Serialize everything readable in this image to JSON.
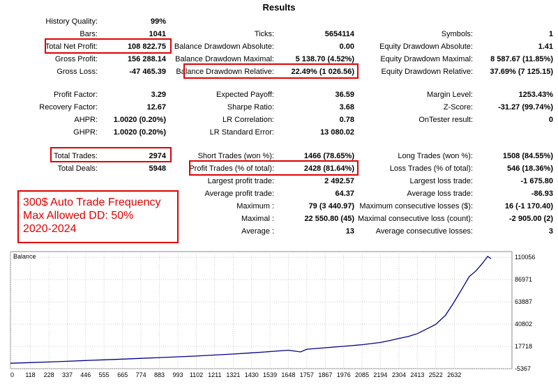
{
  "title": "Results",
  "stats": {
    "history_quality": {
      "label": "History Quality:",
      "value": "99%"
    },
    "bars": {
      "label": "Bars:",
      "value": "1041"
    },
    "total_net_profit": {
      "label": "Total Net Profit:",
      "value": "108 822.75"
    },
    "gross_profit": {
      "label": "Gross Profit:",
      "value": "156 288.14"
    },
    "gross_loss": {
      "label": "Gross Loss:",
      "value": "-47 465.39"
    },
    "ticks": {
      "label": "Ticks:",
      "value": "5654114"
    },
    "balance_dd_absolute": {
      "label": "Balance Drawdown Absolute:",
      "value": "0.00"
    },
    "balance_dd_maximal": {
      "label": "Balance Drawdown Maximal:",
      "value": "5 138.70 (4.52%)"
    },
    "balance_dd_relative": {
      "label": "Balance Drawdown Relative:",
      "value": "22.49% (1 026.56)"
    },
    "symbols": {
      "label": "Symbols:",
      "value": "1"
    },
    "equity_dd_absolute": {
      "label": "Equity Drawdown Absolute:",
      "value": "1.41"
    },
    "equity_dd_maximal": {
      "label": "Equity Drawdown Maximal:",
      "value": "8 587.67 (11.85%)"
    },
    "equity_dd_relative": {
      "label": "Equity Drawdown Relative:",
      "value": "37.69% (7 125.15)"
    },
    "profit_factor": {
      "label": "Profit Factor:",
      "value": "3.29"
    },
    "recovery_factor": {
      "label": "Recovery Factor:",
      "value": "12.67"
    },
    "ahpr": {
      "label": "AHPR:",
      "value": "1.0020 (0.20%)"
    },
    "ghpr": {
      "label": "GHPR:",
      "value": "1.0020 (0.20%)"
    },
    "expected_payoff": {
      "label": "Expected Payoff:",
      "value": "36.59"
    },
    "sharpe_ratio": {
      "label": "Sharpe Ratio:",
      "value": "3.68"
    },
    "lr_correlation": {
      "label": "LR Correlation:",
      "value": "0.78"
    },
    "lr_standard_error": {
      "label": "LR Standard Error:",
      "value": "13 080.02"
    },
    "margin_level": {
      "label": "Margin Level:",
      "value": "1253.43%"
    },
    "z_score": {
      "label": "Z-Score:",
      "value": "-31.27 (99.74%)"
    },
    "on_tester_result": {
      "label": "OnTester result:",
      "value": "0"
    },
    "total_trades": {
      "label": "Total Trades:",
      "value": "2974"
    },
    "total_deals": {
      "label": "Total Deals:",
      "value": "5948"
    },
    "short_trades": {
      "label": "Short Trades (won %):",
      "value": "1466 (78.65%)"
    },
    "profit_trades": {
      "label": "Profit Trades (% of total):",
      "value": "2428 (81.64%)"
    },
    "largest_profit_trade": {
      "label": "Largest profit trade:",
      "value": "2 492.57"
    },
    "average_profit_trade": {
      "label": "Average profit trade:",
      "value": "64.37"
    },
    "maximum": {
      "label": "Maximum :",
      "value": "79 (3 440.97)"
    },
    "maximal": {
      "label": "Maximal :",
      "value": "22 550.80 (45)"
    },
    "average": {
      "label": "Average :",
      "value": "13"
    },
    "long_trades": {
      "label": "Long Trades (won %):",
      "value": "1508 (84.55%)"
    },
    "loss_trades": {
      "label": "Loss Trades (% of total):",
      "value": "546 (18.36%)"
    },
    "largest_loss_trade": {
      "label": "Largest loss trade:",
      "value": "-1 675.80"
    },
    "average_loss_trade": {
      "label": "Average loss trade:",
      "value": "-86.93"
    },
    "max_consecutive_losses": {
      "label": "Maximum consecutive losses ($):",
      "value": "16 (-1 170.40)"
    },
    "maximal_consecutive_loss": {
      "label": "Maximal consecutive loss (count):",
      "value": "-2 905.00 (2)"
    },
    "average_consecutive_losses": {
      "label": "Average consecutive losses:",
      "value": "3"
    }
  },
  "annotation": {
    "line1": "300$ Auto Trade Frequency",
    "line2": "Max Allowed DD: 50%",
    "line3": "2020-2024"
  },
  "colors": {
    "highlight": "#e00000",
    "balance_line": "#00008b"
  },
  "chart_data": {
    "type": "line",
    "title": "Balance",
    "x_ticks": [
      0,
      118,
      228,
      337,
      446,
      555,
      665,
      774,
      883,
      993,
      1102,
      1211,
      1321,
      1430,
      1539,
      1648,
      1757,
      1867,
      1976,
      2085,
      2194,
      2304,
      2413,
      2522,
      2632
    ],
    "y_ticks": [
      -5367,
      17718,
      40802,
      63887,
      86971,
      110056
    ],
    "xlim": [
      0,
      2974
    ],
    "ylim": [
      -5367,
      116000
    ],
    "series": [
      {
        "values": [
          [
            0,
            300
          ],
          [
            118,
            900
          ],
          [
            228,
            1600
          ],
          [
            337,
            2300
          ],
          [
            446,
            3100
          ],
          [
            555,
            3800
          ],
          [
            665,
            4500
          ],
          [
            774,
            5300
          ],
          [
            883,
            6100
          ],
          [
            993,
            6900
          ],
          [
            1102,
            7700
          ],
          [
            1211,
            8800
          ],
          [
            1321,
            9800
          ],
          [
            1430,
            11000
          ],
          [
            1539,
            12300
          ],
          [
            1648,
            13800
          ],
          [
            1720,
            12000
          ],
          [
            1757,
            14800
          ],
          [
            1867,
            16300
          ],
          [
            1976,
            17800
          ],
          [
            2085,
            19500
          ],
          [
            2194,
            21800
          ],
          [
            2250,
            23800
          ],
          [
            2304,
            26000
          ],
          [
            2360,
            28000
          ],
          [
            2413,
            31000
          ],
          [
            2460,
            35000
          ],
          [
            2522,
            40500
          ],
          [
            2580,
            50000
          ],
          [
            2632,
            64000
          ],
          [
            2680,
            78000
          ],
          [
            2720,
            90000
          ],
          [
            2760,
            96000
          ],
          [
            2800,
            104000
          ],
          [
            2830,
            111000
          ],
          [
            2850,
            108500
          ]
        ]
      }
    ]
  }
}
